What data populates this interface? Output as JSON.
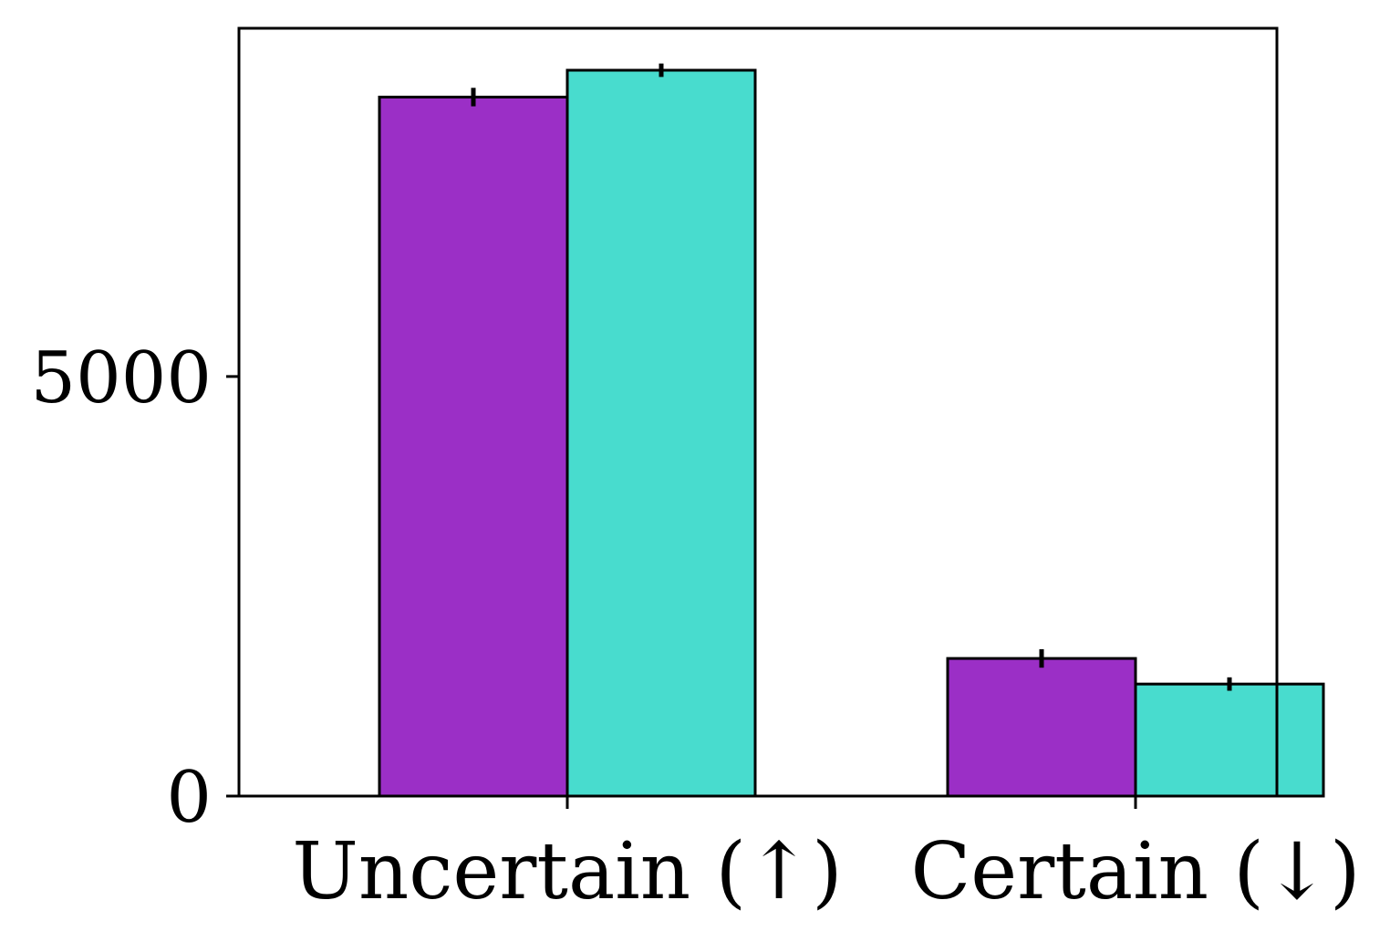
{
  "chart_data": {
    "type": "bar",
    "categories": [
      "Uncertain (↑)",
      "Certain (↓)"
    ],
    "series": [
      {
        "color": "#9B2FC6",
        "values": [
          8330,
          1640
        ],
        "errors": [
          110,
          110
        ]
      },
      {
        "color": "#48DCCE",
        "values": [
          8650,
          1335
        ],
        "errors": [
          80,
          80
        ]
      }
    ],
    "yticks": [
      0,
      5000
    ],
    "ylim": [
      0,
      9150
    ],
    "grid": false
  }
}
